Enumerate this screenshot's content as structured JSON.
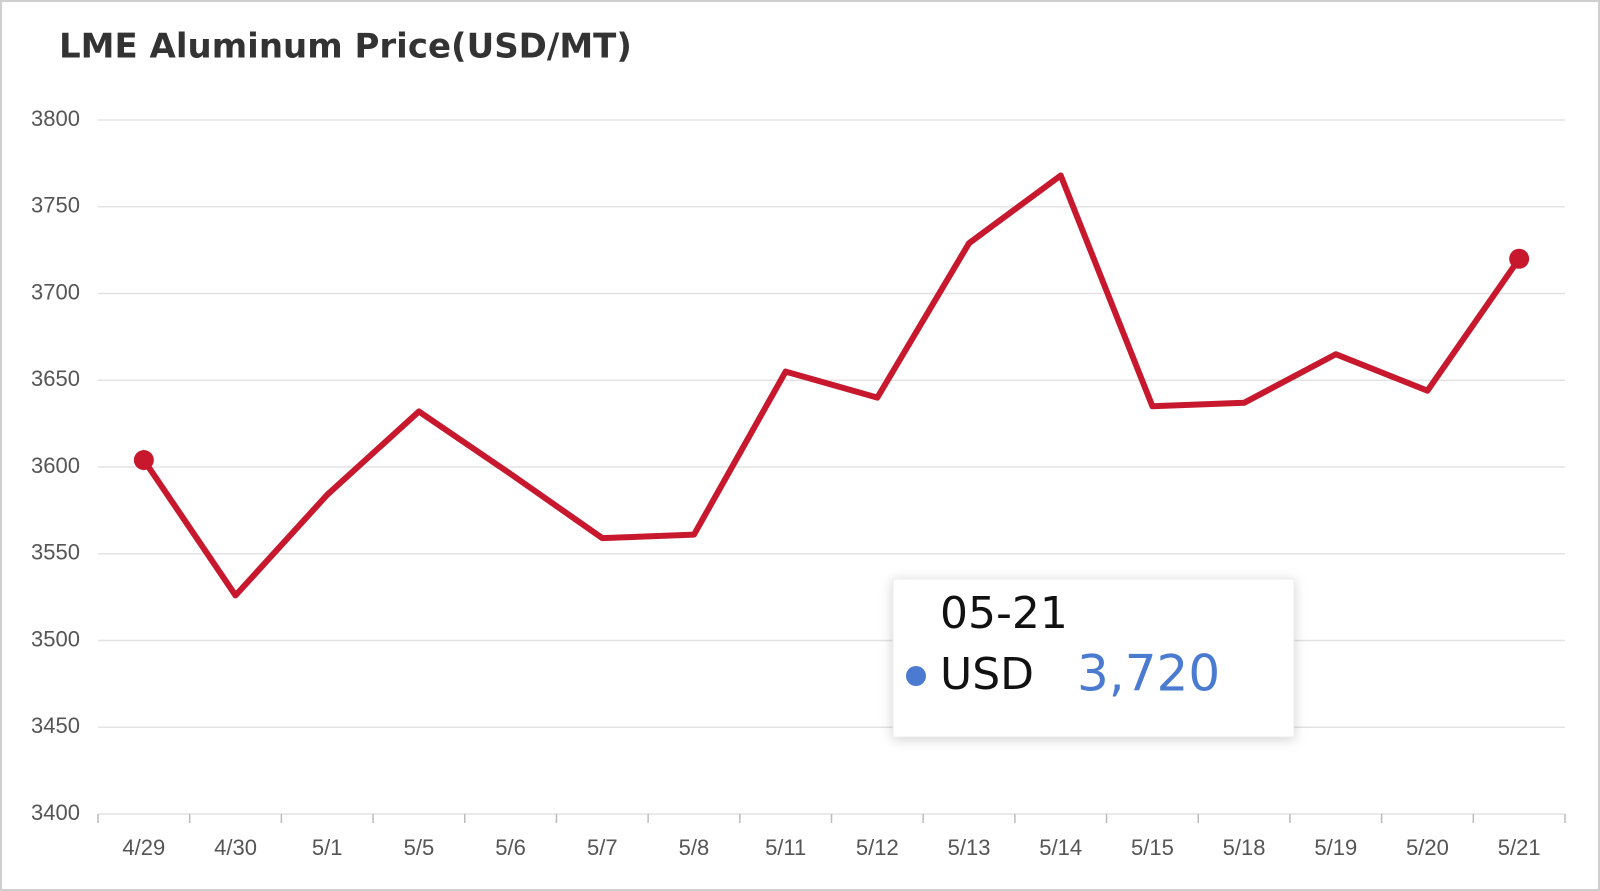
{
  "chart_data": {
    "type": "line",
    "title": "LME Aluminum Price(USD/MT)",
    "categories": [
      "4/29",
      "4/30",
      "5/1",
      "5/5",
      "5/6",
      "5/7",
      "5/8",
      "5/11",
      "5/12",
      "5/13",
      "5/14",
      "5/15",
      "5/18",
      "5/19",
      "5/20",
      "5/21"
    ],
    "series": [
      {
        "name": "USD",
        "color": "#c8182e",
        "values": [
          3604,
          3526,
          3584,
          3632,
          3596,
          3559,
          3561,
          3655,
          3640,
          3729,
          3768,
          3635,
          3637,
          3665,
          3644,
          3720
        ]
      }
    ],
    "ylim": [
      3400,
      3800
    ],
    "yticks": [
      3400,
      3450,
      3500,
      3550,
      3600,
      3650,
      3700,
      3750,
      3800
    ],
    "grid": true,
    "markers": "ends",
    "tooltip": {
      "title": "05-21",
      "value_label": "3,720",
      "dot_color": "#4a7bd0"
    }
  }
}
